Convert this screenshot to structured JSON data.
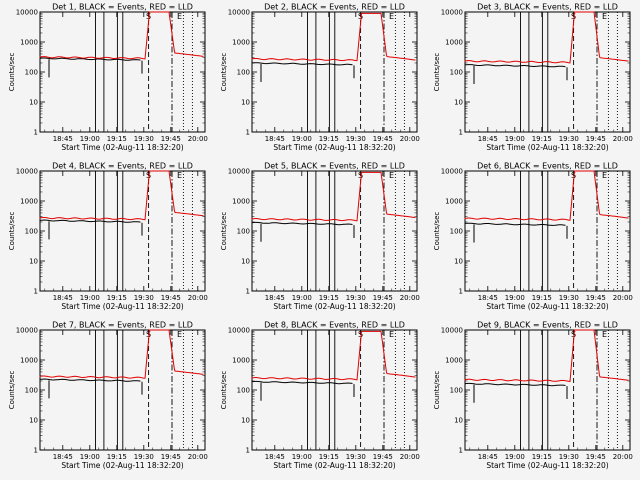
{
  "chart_data": {
    "type": "line",
    "yscale": "log",
    "ylim": [
      1,
      10000
    ],
    "yticks": [
      "1",
      "10",
      "100",
      "1000",
      "10000"
    ],
    "ylabel": "Counts/sec",
    "xlabel": "Start Time (02-Aug-11 18:32:20)",
    "xticks": [
      "18:45",
      "19:00",
      "19:15",
      "19:30",
      "19:45",
      "20:00"
    ],
    "legend_note": "BLACK = Events, RED = LLD",
    "markers": [
      "S",
      "E"
    ],
    "panels": [
      {
        "title": "Det 1, BLACK = Events, RED = LLD",
        "events": 265,
        "lld": 300,
        "peak": 10000,
        "after": 330
      },
      {
        "title": "Det 2, BLACK = Events, RED = LLD",
        "events": 185,
        "lld": 260,
        "peak": 9000,
        "after": 250
      },
      {
        "title": "Det 3, BLACK = Events, RED = LLD",
        "events": 160,
        "lld": 220,
        "peak": 10000,
        "after": 230
      },
      {
        "title": "Det 4, BLACK = Events, RED = LLD",
        "events": 210,
        "lld": 260,
        "peak": 10000,
        "after": 320
      },
      {
        "title": "Det 5, BLACK = Events, RED = LLD",
        "events": 175,
        "lld": 240,
        "peak": 9000,
        "after": 280
      },
      {
        "title": "Det 6, BLACK = Events, RED = LLD",
        "events": 165,
        "lld": 250,
        "peak": 10000,
        "after": 270
      },
      {
        "title": "Det 7, BLACK = Events, RED = LLD",
        "events": 210,
        "lld": 270,
        "peak": 10000,
        "after": 330
      },
      {
        "title": "Det 8, BLACK = Events, RED = LLD",
        "events": 175,
        "lld": 240,
        "peak": 9000,
        "after": 270
      },
      {
        "title": "Det 9, BLACK = Events, RED = LLD",
        "events": 150,
        "lld": 210,
        "peak": 10000,
        "after": 210
      }
    ]
  }
}
